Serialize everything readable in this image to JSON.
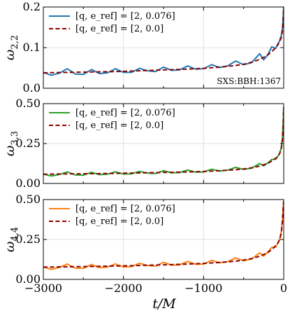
{
  "chart_data": [
    {
      "type": "line",
      "ylabel": "ω_{2,2}",
      "ylabel_base": "ω",
      "ylabel_sub": "2,2",
      "xlabel": "",
      "xlim": [
        -3000,
        0
      ],
      "ylim": [
        0.0,
        0.2
      ],
      "yticks": [
        0.0,
        0.1,
        0.2
      ],
      "ytick_labels": [
        "0.0",
        "0.1",
        "0.2"
      ],
      "xticks": [
        -3000,
        -2000,
        -1000,
        0
      ],
      "xtick_labels": [
        "",
        "",
        "",
        ""
      ],
      "grid": true,
      "legend_placement": "top-left",
      "annotation": "SXS:BBH:1367",
      "series": [
        {
          "name": "[q, e_ref] = [2, 0.076]",
          "legend_label": "[q, e_ref] = [2, 0.076]",
          "color": "#1f77b4",
          "style": "solid",
          "x": [
            -3000,
            -2900,
            -2800,
            -2700,
            -2600,
            -2500,
            -2400,
            -2300,
            -2200,
            -2100,
            -2000,
            -1900,
            -1800,
            -1700,
            -1600,
            -1500,
            -1400,
            -1300,
            -1200,
            -1100,
            -1000,
            -900,
            -800,
            -700,
            -600,
            -500,
            -400,
            -300,
            -250,
            -200,
            -150,
            -100,
            -70,
            -50,
            -30,
            -15,
            -5,
            0
          ],
          "y": [
            0.039,
            0.032,
            0.037,
            0.048,
            0.035,
            0.034,
            0.046,
            0.036,
            0.038,
            0.048,
            0.039,
            0.039,
            0.049,
            0.043,
            0.041,
            0.052,
            0.044,
            0.045,
            0.055,
            0.047,
            0.048,
            0.058,
            0.051,
            0.055,
            0.067,
            0.058,
            0.063,
            0.085,
            0.07,
            0.082,
            0.102,
            0.098,
            0.11,
            0.118,
            0.13,
            0.15,
            0.18,
            0.2
          ]
        },
        {
          "name": "[q, e_ref] = [2, 0.0]",
          "legend_label": "[q, e_ref] = [2, 0.0]",
          "color": "#8b0000",
          "style": "dashed",
          "x": [
            -3000,
            -2700,
            -2400,
            -2100,
            -1800,
            -1500,
            -1200,
            -1000,
            -800,
            -600,
            -500,
            -400,
            -300,
            -250,
            -200,
            -150,
            -100,
            -70,
            -50,
            -30,
            -15,
            -5,
            0
          ],
          "y": [
            0.038,
            0.039,
            0.04,
            0.041,
            0.043,
            0.045,
            0.047,
            0.049,
            0.052,
            0.056,
            0.059,
            0.064,
            0.071,
            0.076,
            0.082,
            0.09,
            0.1,
            0.108,
            0.115,
            0.125,
            0.142,
            0.175,
            0.2
          ]
        }
      ]
    },
    {
      "type": "line",
      "ylabel": "ω_{3,3}",
      "ylabel_base": "ω",
      "ylabel_sub": "3,3",
      "xlabel": "",
      "xlim": [
        -3000,
        0
      ],
      "ylim": [
        0.0,
        0.5
      ],
      "yticks": [
        0.0,
        0.25,
        0.5
      ],
      "ytick_labels": [
        "0.00",
        "0.25",
        "0.50"
      ],
      "xticks": [
        -3000,
        -2000,
        -1000,
        0
      ],
      "xtick_labels": [
        "",
        "",
        "",
        ""
      ],
      "grid": true,
      "legend_placement": "top-left",
      "series": [
        {
          "name": "[q, e_ref] = [2, 0.076]",
          "legend_label": "[q, e_ref] = [2, 0.076]",
          "color": "#2ca02c",
          "style": "solid",
          "x": [
            -3000,
            -2900,
            -2800,
            -2700,
            -2600,
            -2500,
            -2400,
            -2300,
            -2200,
            -2100,
            -2000,
            -1900,
            -1800,
            -1700,
            -1600,
            -1500,
            -1400,
            -1300,
            -1200,
            -1100,
            -1000,
            -900,
            -800,
            -700,
            -600,
            -500,
            -400,
            -300,
            -250,
            -200,
            -150,
            -100,
            -70,
            -50,
            -30,
            -15,
            -5,
            0
          ],
          "y": [
            0.058,
            0.047,
            0.056,
            0.072,
            0.053,
            0.052,
            0.07,
            0.055,
            0.058,
            0.073,
            0.059,
            0.06,
            0.076,
            0.065,
            0.062,
            0.08,
            0.067,
            0.068,
            0.084,
            0.071,
            0.072,
            0.089,
            0.078,
            0.083,
            0.101,
            0.088,
            0.096,
            0.125,
            0.11,
            0.128,
            0.15,
            0.152,
            0.172,
            0.19,
            0.225,
            0.29,
            0.4,
            0.48
          ]
        },
        {
          "name": "[q, e_ref] = [2, 0.0]",
          "legend_label": "[q, e_ref] = [2, 0.0]",
          "color": "#8b0000",
          "style": "dashed",
          "x": [
            -3000,
            -2700,
            -2400,
            -2100,
            -1800,
            -1500,
            -1200,
            -1000,
            -800,
            -600,
            -500,
            -400,
            -300,
            -250,
            -200,
            -150,
            -100,
            -70,
            -50,
            -30,
            -15,
            -5,
            0
          ],
          "y": [
            0.058,
            0.06,
            0.061,
            0.063,
            0.066,
            0.069,
            0.072,
            0.075,
            0.08,
            0.086,
            0.091,
            0.098,
            0.109,
            0.117,
            0.126,
            0.14,
            0.158,
            0.172,
            0.188,
            0.22,
            0.28,
            0.39,
            0.48
          ]
        }
      ]
    },
    {
      "type": "line",
      "ylabel": "ω_{4,4}",
      "ylabel_base": "ω",
      "ylabel_sub": "4,4",
      "xlabel": "t/M",
      "xlim": [
        -3000,
        0
      ],
      "ylim": [
        0.0,
        0.5
      ],
      "yticks": [
        0.0,
        0.25,
        0.5
      ],
      "ytick_labels": [
        "0.00",
        "0.25",
        "0.50"
      ],
      "xticks": [
        -3000,
        -2000,
        -1000,
        0
      ],
      "xtick_labels": [
        "−3000",
        "−2000",
        "−1000",
        "0"
      ],
      "grid": true,
      "legend_placement": "top-left",
      "series": [
        {
          "name": "[q, e_ref] = [2, 0.076]",
          "legend_label": "[q, e_ref] = [2, 0.076]",
          "color": "#ff7f0e",
          "style": "solid",
          "x": [
            -3000,
            -2900,
            -2800,
            -2700,
            -2600,
            -2500,
            -2400,
            -2300,
            -2200,
            -2100,
            -2000,
            -1900,
            -1800,
            -1700,
            -1600,
            -1500,
            -1400,
            -1300,
            -1200,
            -1100,
            -1000,
            -900,
            -800,
            -700,
            -600,
            -500,
            -400,
            -300,
            -250,
            -200,
            -150,
            -100,
            -70,
            -50,
            -30,
            -15,
            -5,
            0
          ],
          "y": [
            0.078,
            0.063,
            0.075,
            0.096,
            0.07,
            0.069,
            0.093,
            0.073,
            0.077,
            0.097,
            0.078,
            0.08,
            0.101,
            0.087,
            0.083,
            0.107,
            0.089,
            0.091,
            0.112,
            0.095,
            0.096,
            0.119,
            0.104,
            0.111,
            0.134,
            0.117,
            0.128,
            0.166,
            0.146,
            0.17,
            0.2,
            0.203,
            0.23,
            0.253,
            0.3,
            0.38,
            0.46,
            0.49
          ]
        },
        {
          "name": "[q, e_ref] = [2, 0.0]",
          "legend_label": "[q, e_ref] = [2, 0.0]",
          "color": "#8b0000",
          "style": "dashed",
          "x": [
            -3000,
            -2700,
            -2400,
            -2100,
            -1800,
            -1500,
            -1200,
            -1000,
            -800,
            -600,
            -500,
            -400,
            -300,
            -250,
            -200,
            -150,
            -100,
            -70,
            -50,
            -30,
            -15,
            -5,
            0
          ],
          "y": [
            0.077,
            0.079,
            0.081,
            0.084,
            0.087,
            0.091,
            0.096,
            0.1,
            0.106,
            0.114,
            0.121,
            0.13,
            0.145,
            0.156,
            0.168,
            0.186,
            0.21,
            0.23,
            0.25,
            0.29,
            0.37,
            0.46,
            0.49
          ]
        }
      ]
    }
  ]
}
